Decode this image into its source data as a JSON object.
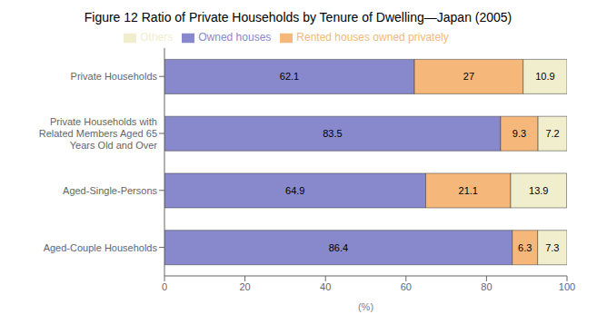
{
  "chart_data": {
    "type": "bar",
    "title": "Figure 12 Ratio of Private Households by Tenure of Dwelling—Japan (2005)",
    "orientation": "horizontal",
    "stacked": true,
    "data_labels": true,
    "grid": false,
    "legend": "top",
    "categories": [
      "Private Households",
      "Private Households with\nRelated Members Aged 65\nYears Old and Over",
      "Aged-Single-Persons",
      "Aged-Couple Households"
    ],
    "series": [
      {
        "name": "Owned houses",
        "color": "#8888cc",
        "values": [
          62.1,
          83.5,
          64.9,
          86.4
        ]
      },
      {
        "name": "Rented houses owned privately",
        "color": "#f5b87a",
        "values": [
          27.0,
          9.3,
          21.1,
          6.3
        ]
      },
      {
        "name": "Others",
        "color": "#f0eecc",
        "values": [
          10.9,
          7.2,
          13.9,
          7.3
        ]
      }
    ],
    "xlabel": "(%)",
    "xlim": [
      0,
      100
    ],
    "xticks": [
      0,
      20,
      40,
      60,
      80,
      100
    ]
  }
}
